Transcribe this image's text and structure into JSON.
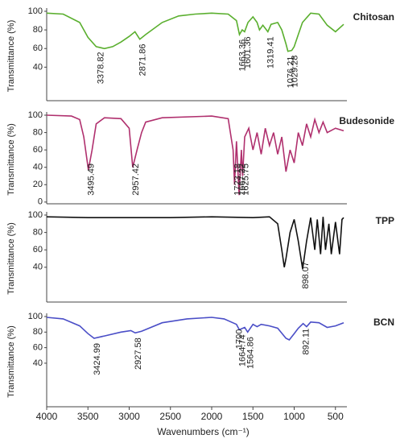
{
  "chart_data": [
    {
      "type": "line",
      "name": "Chitosan",
      "color": "#5aaf2e",
      "ylabel": "Transmittance (%)",
      "xlim": [
        4000,
        400
      ],
      "ylim": [
        4,
        100
      ],
      "yticks": [
        40,
        60,
        80,
        100
      ],
      "x": [
        4000,
        3800,
        3600,
        3500,
        3400,
        3300,
        3200,
        3100,
        3000,
        2930,
        2871,
        2800,
        2600,
        2400,
        2200,
        2000,
        1800,
        1700,
        1663,
        1630,
        1601,
        1560,
        1500,
        1450,
        1420,
        1380,
        1319,
        1280,
        1200,
        1150,
        1100,
        1076,
        1029,
        1000,
        950,
        900,
        800,
        700,
        600,
        500,
        400
      ],
      "values": [
        98,
        97,
        88,
        72,
        62,
        60,
        62,
        67,
        73,
        78,
        70,
        75,
        88,
        95,
        97,
        98,
        97,
        90,
        75,
        80,
        78,
        88,
        94,
        88,
        80,
        85,
        78,
        86,
        88,
        80,
        65,
        57,
        58,
        62,
        75,
        88,
        98,
        97,
        85,
        78,
        86
      ],
      "peaks": [
        3378.82,
        2871.86,
        1663.36,
        1601.36,
        1319.41,
        1076.21,
        1029.28
      ]
    },
    {
      "type": "line",
      "name": "Budesonide",
      "color": "#b0306e",
      "ylabel": "Transmittance (%)",
      "xlim": [
        4000,
        400
      ],
      "ylim": [
        -2,
        100
      ],
      "yticks": [
        0,
        20,
        40,
        60,
        80,
        100
      ],
      "x": [
        4000,
        3700,
        3600,
        3550,
        3495,
        3450,
        3400,
        3300,
        3100,
        3000,
        2957,
        2900,
        2850,
        2800,
        2600,
        2000,
        1800,
        1740,
        1723,
        1700,
        1667,
        1640,
        1625,
        1600,
        1550,
        1500,
        1450,
        1400,
        1350,
        1300,
        1250,
        1200,
        1150,
        1100,
        1050,
        1000,
        950,
        900,
        850,
        800,
        750,
        700,
        650,
        600,
        500,
        400
      ],
      "values": [
        100,
        99,
        95,
        75,
        37,
        60,
        90,
        97,
        96,
        85,
        40,
        62,
        80,
        92,
        97,
        99,
        96,
        60,
        20,
        70,
        8,
        60,
        30,
        75,
        85,
        60,
        80,
        55,
        85,
        65,
        80,
        55,
        75,
        35,
        60,
        45,
        80,
        65,
        90,
        75,
        95,
        80,
        92,
        80,
        85,
        82
      ],
      "peaks": [
        3495.49,
        2957.42,
        1723.18,
        1667.22,
        1625.75
      ]
    },
    {
      "type": "line",
      "name": "TPP",
      "color": "#111111",
      "ylabel": "Transmittance (%)",
      "xlim": [
        4000,
        400
      ],
      "ylim": [
        0,
        100
      ],
      "yticks": [
        40,
        60,
        80,
        100
      ],
      "x": [
        4000,
        3500,
        3000,
        2500,
        2000,
        1500,
        1300,
        1200,
        1150,
        1120,
        1100,
        1050,
        1000,
        950,
        898,
        850,
        800,
        750,
        720,
        680,
        650,
        620,
        580,
        550,
        500,
        450,
        420,
        400
      ],
      "values": [
        98,
        97,
        97,
        97,
        98,
        97,
        98,
        90,
        60,
        40,
        50,
        80,
        95,
        70,
        38,
        70,
        97,
        60,
        95,
        55,
        98,
        60,
        90,
        55,
        92,
        55,
        95,
        97
      ],
      "peaks": [
        898.07
      ]
    },
    {
      "type": "line",
      "name": "BCN",
      "color": "#4a4ec7",
      "ylabel": "Transmittance (%)",
      "xlabel": "Wavenumbers (cm⁻¹)",
      "xlim": [
        4000,
        400
      ],
      "ylim": [
        -16,
        100
      ],
      "yticks": [
        40,
        60,
        80,
        100
      ],
      "xticks": [
        4000,
        3500,
        3000,
        2500,
        2000,
        1500,
        1000,
        500
      ],
      "x": [
        4000,
        3800,
        3600,
        3500,
        3425,
        3300,
        3100,
        2980,
        2927,
        2850,
        2600,
        2300,
        2000,
        1850,
        1700,
        1665,
        1600,
        1564,
        1500,
        1450,
        1400,
        1300,
        1200,
        1100,
        1060,
        1000,
        950,
        892,
        850,
        800,
        700,
        600,
        500,
        400
      ],
      "values": [
        99,
        97,
        88,
        78,
        72,
        75,
        80,
        82,
        79,
        81,
        92,
        97,
        99,
        97,
        90,
        83,
        86,
        80,
        90,
        87,
        90,
        88,
        85,
        72,
        70,
        78,
        85,
        91,
        87,
        93,
        92,
        86,
        88,
        92
      ],
      "peaks": [
        3424.99,
        2927.58,
        1700,
        1664.74,
        1564.86,
        892.11
      ]
    }
  ]
}
